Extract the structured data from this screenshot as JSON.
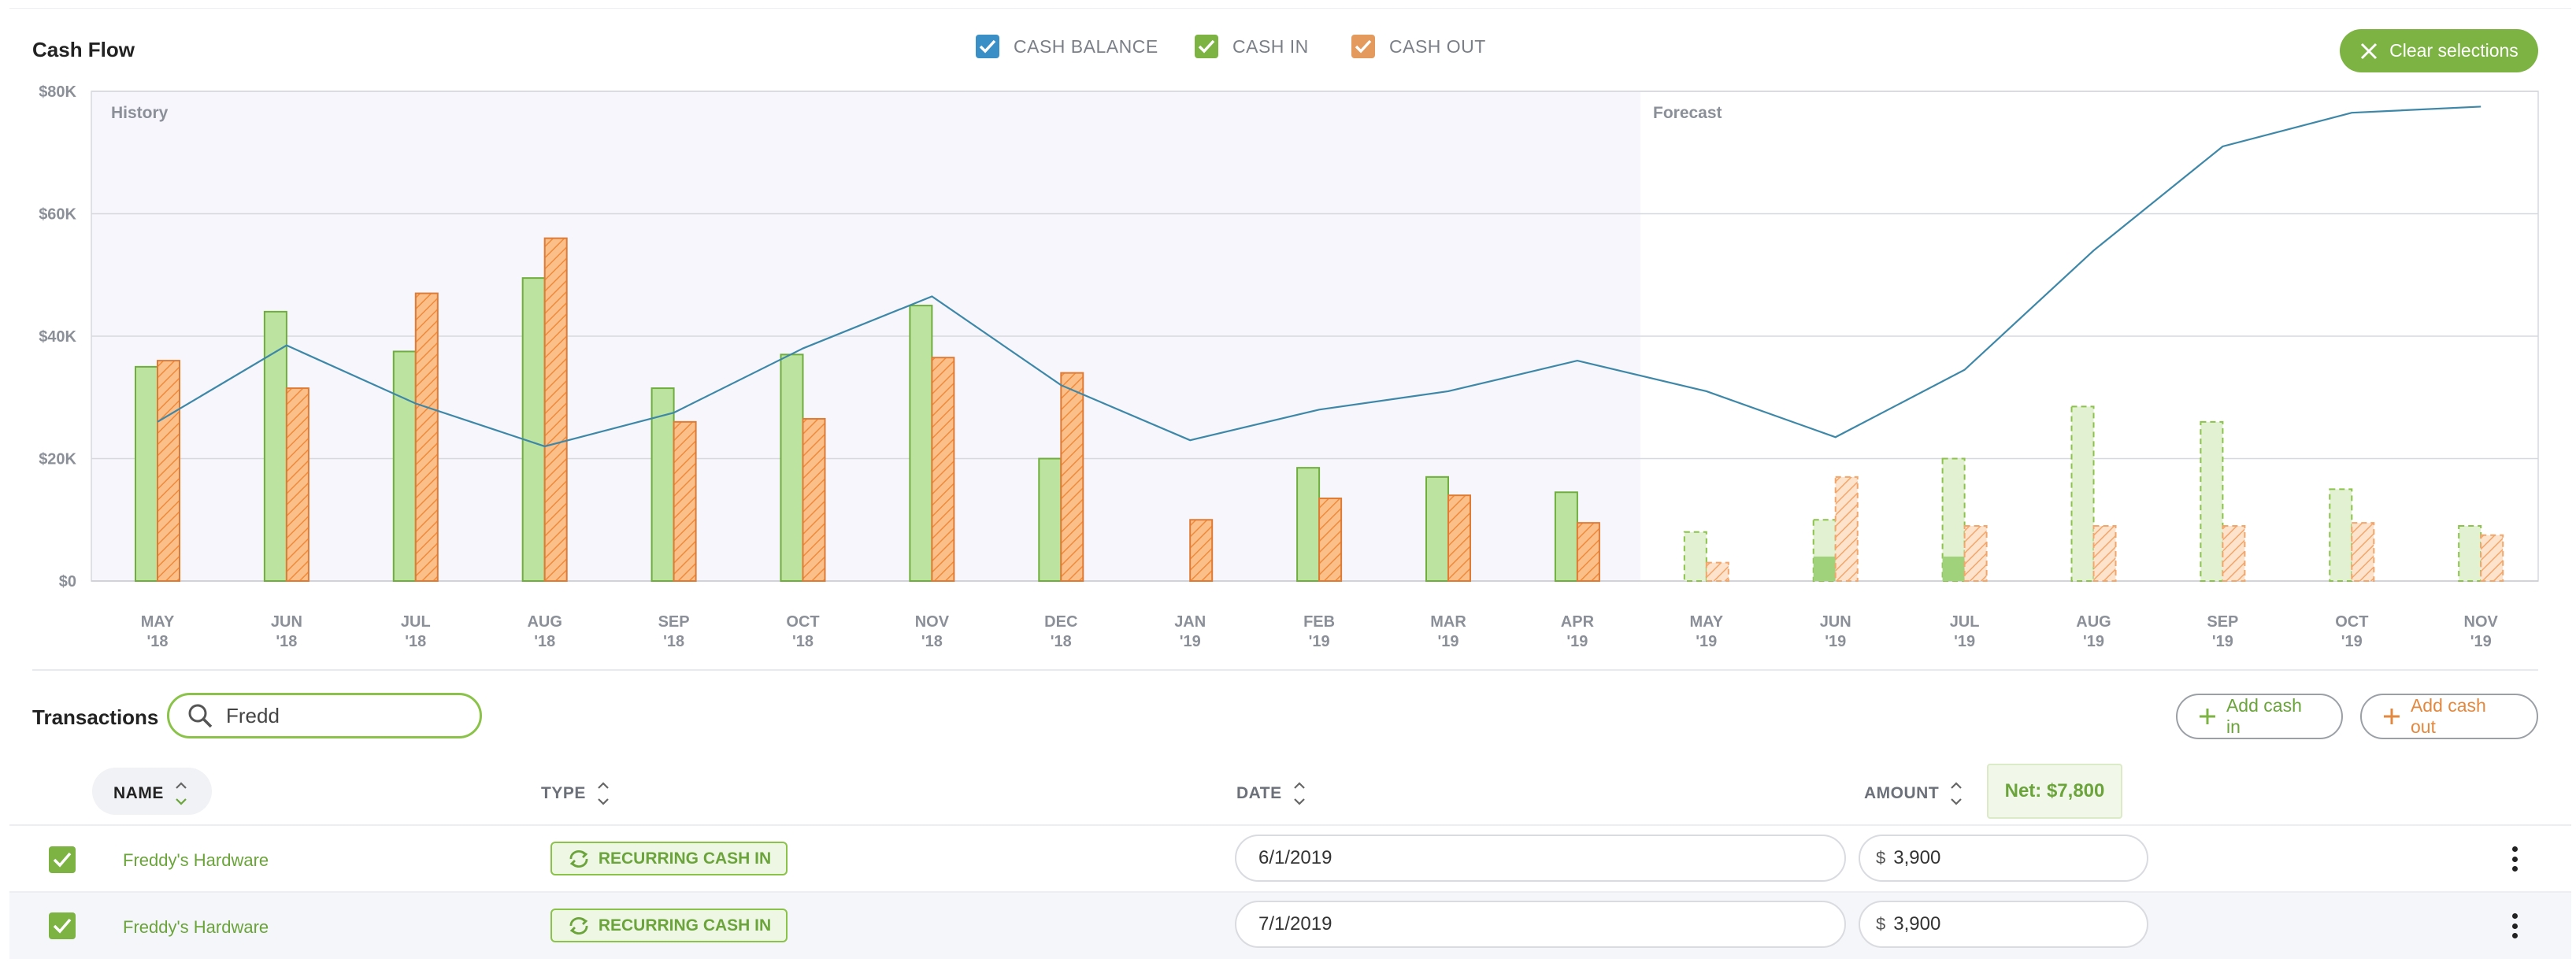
{
  "header": {
    "title": "Cash Flow",
    "clear_label": "Clear selections"
  },
  "legend": [
    {
      "label": "CASH BALANCE",
      "color": "#3a8fc7",
      "checked": true
    },
    {
      "label": "CASH IN",
      "color": "#7cb342",
      "checked": true
    },
    {
      "label": "CASH OUT",
      "color": "#e39a5c",
      "checked": true
    }
  ],
  "chart_data": {
    "type": "bar",
    "regions": [
      "History",
      "Forecast"
    ],
    "categories": [
      "MAY '18",
      "JUN '18",
      "JUL '18",
      "AUG '18",
      "SEP '18",
      "OCT '18",
      "NOV '18",
      "DEC '18",
      "JAN '19",
      "FEB '19",
      "MAR '19",
      "APR '19",
      "MAY '19",
      "JUN '19",
      "JUL '19",
      "AUG '19",
      "SEP '19",
      "OCT '19",
      "NOV '19"
    ],
    "forecast_start_index": 12,
    "ylim": [
      0,
      80000
    ],
    "yticks": [
      "$0",
      "$20K",
      "$40K",
      "$60K",
      "$80K"
    ],
    "grid": true,
    "series": [
      {
        "name": "CASH IN",
        "type": "bar",
        "values": [
          35000,
          44000,
          37500,
          49500,
          31500,
          37000,
          45000,
          20000,
          0,
          18500,
          17000,
          14500,
          8000,
          10000,
          20000,
          28500,
          26000,
          15000,
          9000
        ],
        "forecast_actual": [
          0,
          0,
          0,
          0,
          0,
          0,
          0,
          0,
          0,
          0,
          0,
          0,
          0,
          4000,
          4000,
          0,
          0,
          0,
          0
        ]
      },
      {
        "name": "CASH OUT",
        "type": "bar",
        "values": [
          36000,
          31500,
          47000,
          56000,
          26000,
          26500,
          36500,
          34000,
          10000,
          13500,
          14000,
          9500,
          3000,
          17000,
          9000,
          9000,
          9000,
          9500,
          7500
        ]
      },
      {
        "name": "CASH BALANCE",
        "type": "line",
        "values": [
          26000,
          38500,
          29000,
          22000,
          27500,
          38000,
          46500,
          32000,
          23000,
          28000,
          31000,
          36000,
          31000,
          23500,
          34500,
          54000,
          71000,
          76500,
          77500
        ]
      }
    ]
  },
  "transactions": {
    "title": "Transactions",
    "search_value": "Fredd",
    "add_in_label": "Add cash in",
    "add_out_label": "Add cash out",
    "columns": {
      "name": "NAME",
      "type": "TYPE",
      "date": "DATE",
      "amount": "AMOUNT"
    },
    "net_label": "Net: $7,800",
    "currency_symbol": "$",
    "rows": [
      {
        "name": "Freddy's Hardware",
        "type": "RECURRING CASH IN",
        "date": "6/1/2019",
        "amount": "3,900"
      },
      {
        "name": "Freddy's Hardware",
        "type": "RECURRING CASH IN",
        "date": "7/1/2019",
        "amount": "3,900"
      }
    ]
  }
}
